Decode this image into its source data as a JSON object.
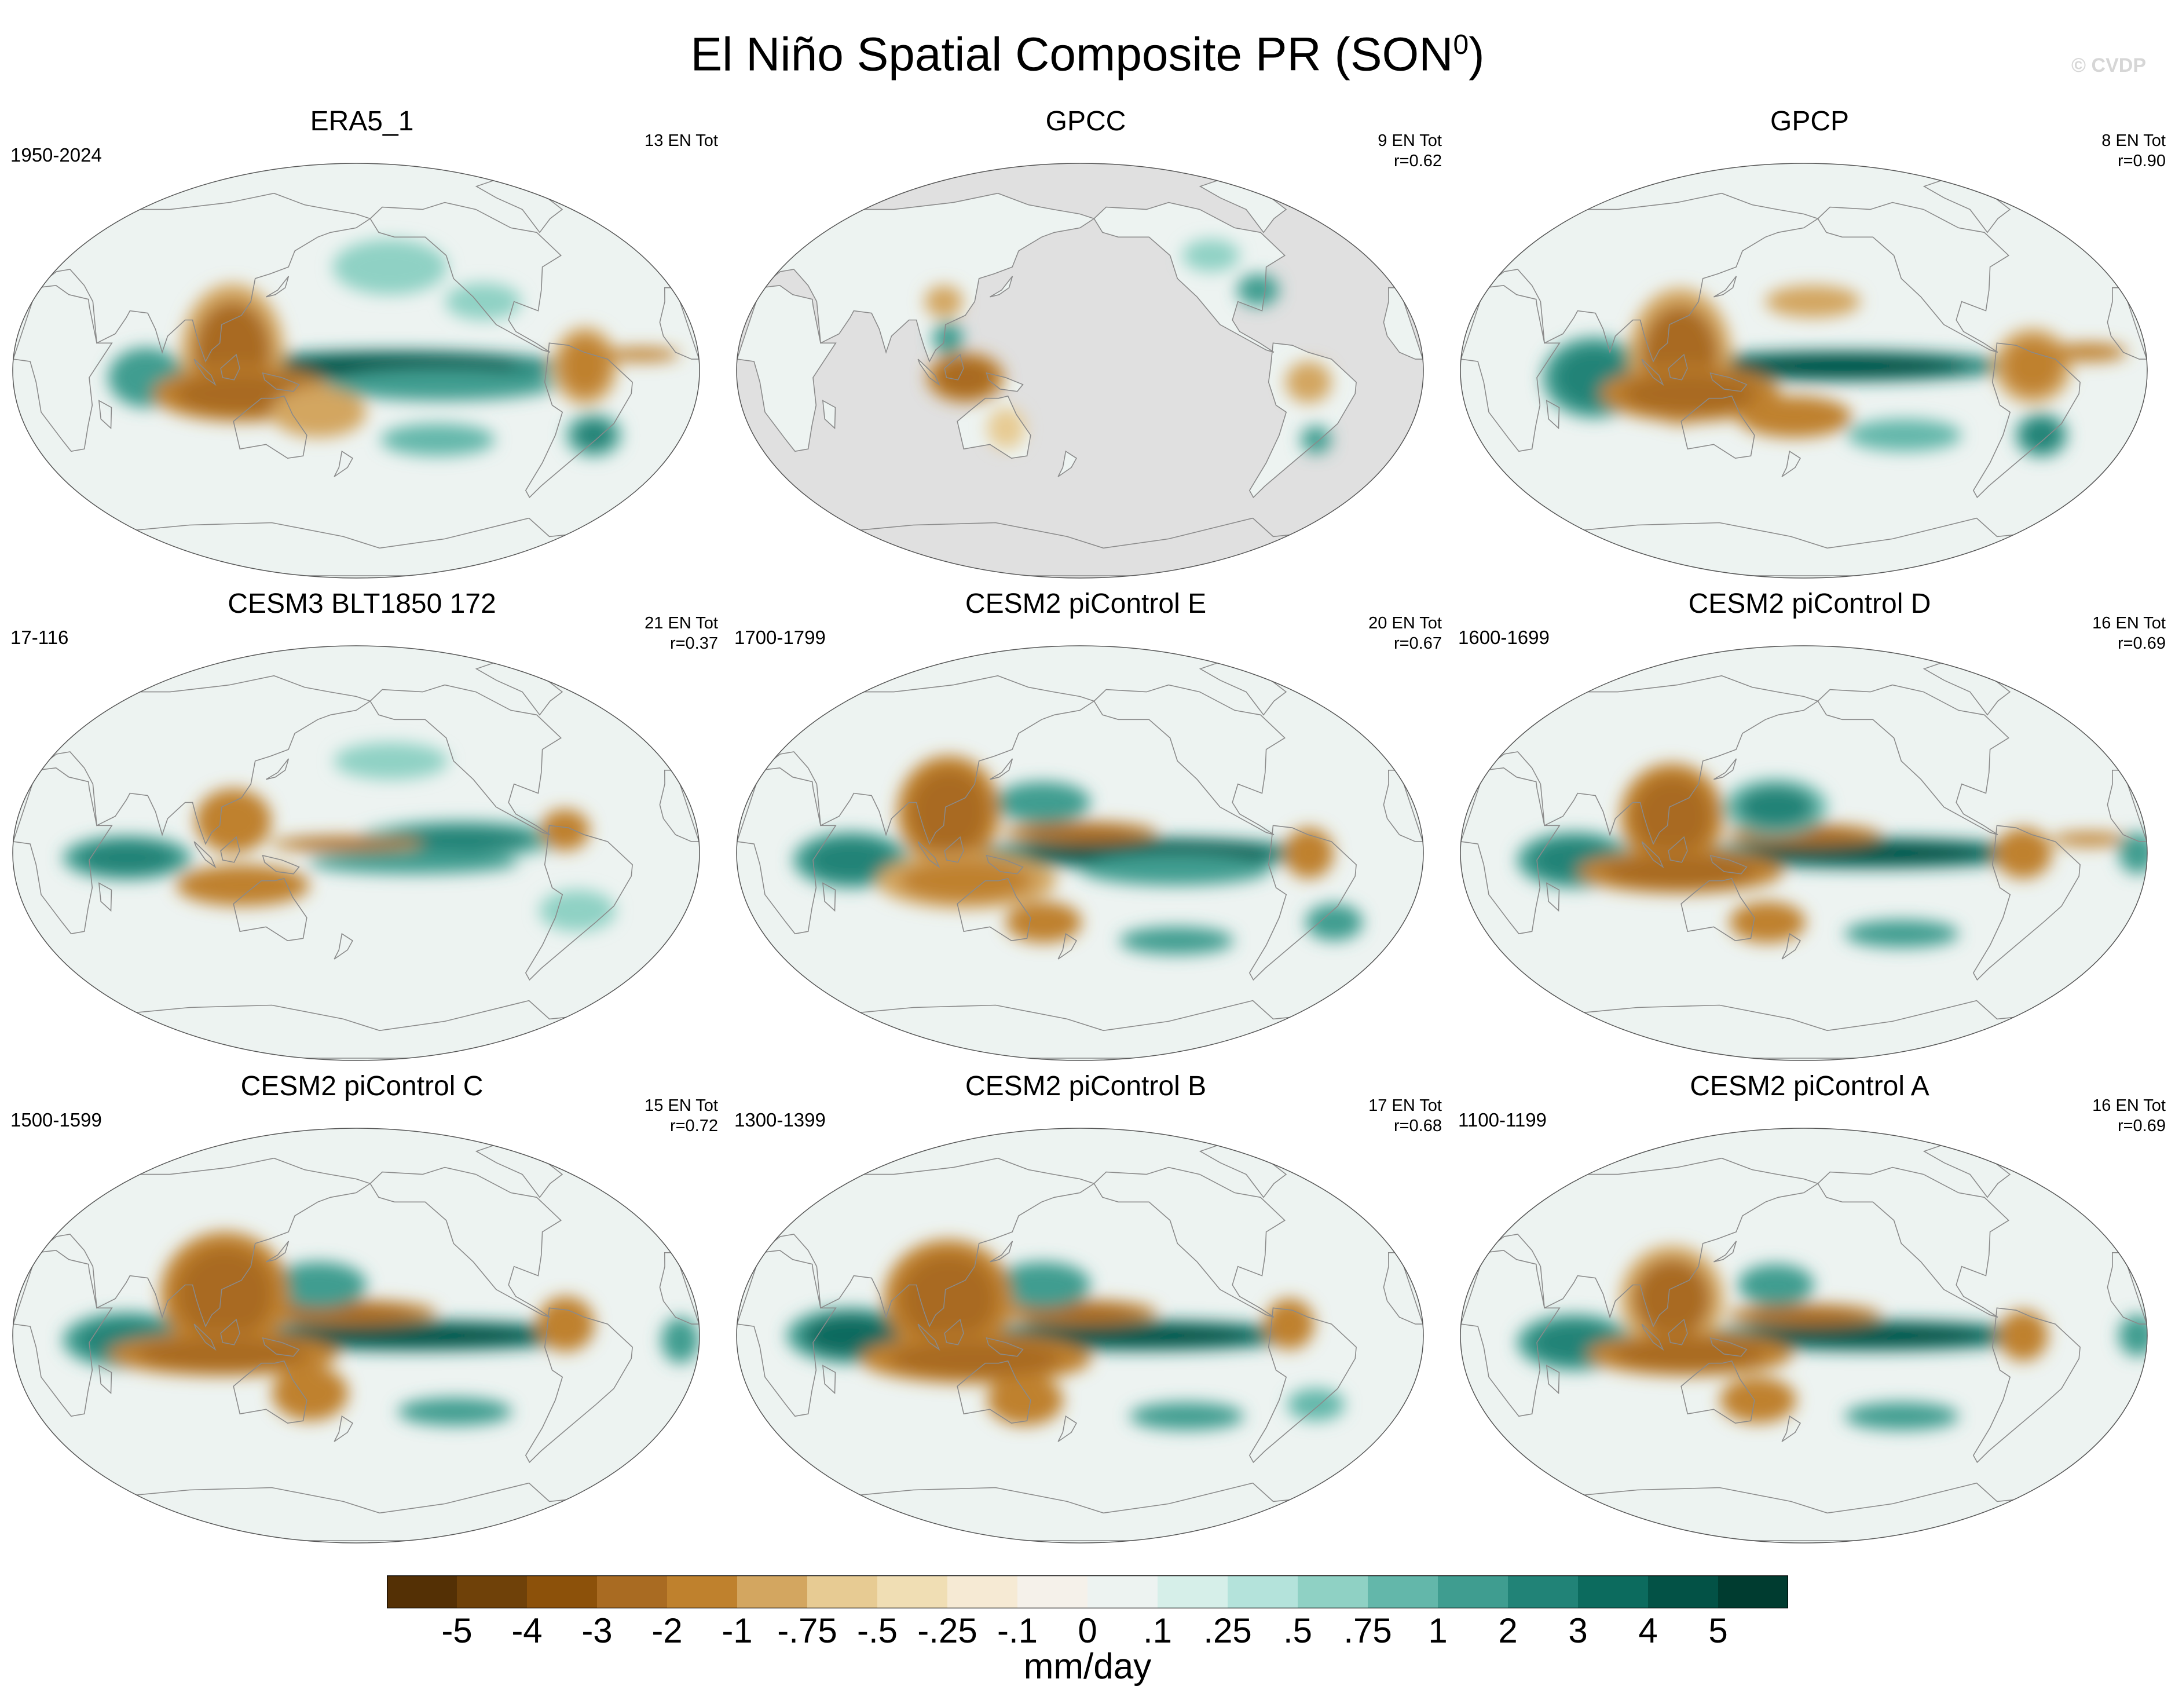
{
  "title": "El Niño Spatial Composite PR (SON",
  "title_sup": "0",
  "title_close": ")",
  "watermark": "© CVDP",
  "units": "mm/day",
  "chart_data": {
    "type": "heatmap",
    "projection": "Robinson (Pacific-centered global maps)",
    "layout": "3x3 grid of global map panels",
    "panels": [
      {
        "title": "ERA5_1",
        "years": "1950-2024",
        "en_count": "13 EN Tot",
        "r": "",
        "ocean_masked": false,
        "features": [
          {
            "lon": 200,
            "lat": 2,
            "w": 130,
            "h": 10,
            "v": 4.5
          },
          {
            "lon": 225,
            "lat": -6,
            "w": 120,
            "h": 14,
            "v": 1.2
          },
          {
            "lon": 70,
            "lat": -3,
            "w": 40,
            "h": 26,
            "v": 1.5
          },
          {
            "lon": 115,
            "lat": 8,
            "w": 40,
            "h": 44,
            "v": -2.2
          },
          {
            "lon": 120,
            "lat": -10,
            "w": 70,
            "h": 18,
            "v": -2.5
          },
          {
            "lon": 160,
            "lat": -18,
            "w": 50,
            "h": 22,
            "v": -1.0
          },
          {
            "lon": 300,
            "lat": 2,
            "w": 25,
            "h": 25,
            "v": -2.0
          },
          {
            "lon": 330,
            "lat": 7,
            "w": 40,
            "h": 6,
            "v": -1.2
          },
          {
            "lon": 310,
            "lat": -28,
            "w": 22,
            "h": 14,
            "v": 2.0
          },
          {
            "lon": 225,
            "lat": -30,
            "w": 60,
            "h": 14,
            "v": 0.9
          },
          {
            "lon": 200,
            "lat": 45,
            "w": 60,
            "h": 24,
            "v": 0.5
          },
          {
            "lon": 250,
            "lat": 30,
            "w": 40,
            "h": 16,
            "v": 0.7
          }
        ]
      },
      {
        "title": "GPCC",
        "years": "",
        "en_count": "9 EN Tot",
        "r": "r=0.62",
        "ocean_masked": true,
        "features": [
          {
            "lon": 120,
            "lat": -3,
            "w": 30,
            "h": 16,
            "v": -2.5
          },
          {
            "lon": 110,
            "lat": 14,
            "w": 16,
            "h": 14,
            "v": 1.8
          },
          {
            "lon": 105,
            "lat": 30,
            "w": 20,
            "h": 14,
            "v": -0.8
          },
          {
            "lon": 140,
            "lat": -25,
            "w": 20,
            "h": 18,
            "v": -0.6
          },
          {
            "lon": 280,
            "lat": 35,
            "w": 22,
            "h": 14,
            "v": 1.5
          },
          {
            "lon": 260,
            "lat": 50,
            "w": 30,
            "h": 14,
            "v": 0.6
          },
          {
            "lon": 300,
            "lat": -5,
            "w": 24,
            "h": 18,
            "v": -0.9
          },
          {
            "lon": 310,
            "lat": -30,
            "w": 16,
            "h": 12,
            "v": 1.4
          }
        ]
      },
      {
        "title": "GPCP",
        "years": "",
        "en_count": "8 EN Tot",
        "r": "r=0.90",
        "ocean_masked": false,
        "features": [
          {
            "lon": 200,
            "lat": 2,
            "w": 130,
            "h": 10,
            "v": 4.5
          },
          {
            "lon": 70,
            "lat": -3,
            "w": 40,
            "h": 26,
            "v": 2.5
          },
          {
            "lon": 115,
            "lat": 6,
            "w": 40,
            "h": 44,
            "v": -2.2
          },
          {
            "lon": 120,
            "lat": -10,
            "w": 70,
            "h": 18,
            "v": -3.0
          },
          {
            "lon": 175,
            "lat": -20,
            "w": 60,
            "h": 18,
            "v": -1.5
          },
          {
            "lon": 300,
            "lat": 2,
            "w": 30,
            "h": 24,
            "v": -2.0
          },
          {
            "lon": 310,
            "lat": -28,
            "w": 20,
            "h": 14,
            "v": 2.5
          },
          {
            "lon": 235,
            "lat": -28,
            "w": 60,
            "h": 14,
            "v": 0.9
          },
          {
            "lon": 185,
            "lat": 30,
            "w": 50,
            "h": 14,
            "v": -0.8
          },
          {
            "lon": 330,
            "lat": 8,
            "w": 40,
            "h": 8,
            "v": -1.2
          }
        ]
      },
      {
        "title": "CESM3 BLT1850 172",
        "years": "17-116",
        "en_count": "21 EN Tot",
        "r": "r=0.37",
        "ocean_masked": false,
        "features": [
          {
            "lon": 235,
            "lat": 6,
            "w": 80,
            "h": 12,
            "v": 2.0
          },
          {
            "lon": 175,
            "lat": 4,
            "w": 60,
            "h": 5,
            "v": -3.0
          },
          {
            "lon": 210,
            "lat": -4,
            "w": 110,
            "h": 10,
            "v": 1.5
          },
          {
            "lon": 60,
            "lat": -2,
            "w": 50,
            "h": 14,
            "v": 2.5
          },
          {
            "lon": 115,
            "lat": 14,
            "w": 40,
            "h": 28,
            "v": -1.5
          },
          {
            "lon": 120,
            "lat": -14,
            "w": 70,
            "h": 18,
            "v": -1.2
          },
          {
            "lon": 290,
            "lat": 10,
            "w": 26,
            "h": 18,
            "v": -1.5
          },
          {
            "lon": 300,
            "lat": -25,
            "w": 40,
            "h": 18,
            "v": 0.6
          },
          {
            "lon": 200,
            "lat": 40,
            "w": 60,
            "h": 16,
            "v": 0.5
          }
        ]
      },
      {
        "title": "CESM2 piControl E",
        "years": "1700-1799",
        "en_count": "20 EN Tot",
        "r": "r=0.67",
        "ocean_masked": false,
        "features": [
          {
            "lon": 215,
            "lat": 0,
            "w": 130,
            "h": 10,
            "v": 4.5
          },
          {
            "lon": 230,
            "lat": -7,
            "w": 100,
            "h": 14,
            "v": 1.0
          },
          {
            "lon": 180,
            "lat": 9,
            "w": 60,
            "h": 7,
            "v": -3.0
          },
          {
            "lon": 160,
            "lat": 22,
            "w": 50,
            "h": 18,
            "v": 1.5
          },
          {
            "lon": 60,
            "lat": -3,
            "w": 45,
            "h": 18,
            "v": 2.5
          },
          {
            "lon": 110,
            "lat": 18,
            "w": 40,
            "h": 36,
            "v": -2.5
          },
          {
            "lon": 120,
            "lat": -12,
            "w": 70,
            "h": 18,
            "v": -2.0
          },
          {
            "lon": 160,
            "lat": -30,
            "w": 40,
            "h": 18,
            "v": -1.5
          },
          {
            "lon": 300,
            "lat": 0,
            "w": 26,
            "h": 22,
            "v": -1.5
          },
          {
            "lon": 235,
            "lat": -38,
            "w": 60,
            "h": 12,
            "v": 1.5
          },
          {
            "lon": 320,
            "lat": -30,
            "w": 30,
            "h": 16,
            "v": 1.0
          }
        ]
      },
      {
        "title": "CESM2 piControl D",
        "years": "1600-1699",
        "en_count": "16 EN Tot",
        "r": "r=0.69",
        "ocean_masked": false,
        "features": [
          {
            "lon": 215,
            "lat": 0,
            "w": 130,
            "h": 10,
            "v": 4.5
          },
          {
            "lon": 180,
            "lat": 8,
            "w": 60,
            "h": 7,
            "v": -3.0
          },
          {
            "lon": 165,
            "lat": 20,
            "w": 40,
            "h": 18,
            "v": 2.0
          },
          {
            "lon": 60,
            "lat": -3,
            "w": 45,
            "h": 18,
            "v": 2.5
          },
          {
            "lon": 110,
            "lat": 16,
            "w": 40,
            "h": 34,
            "v": -2.5
          },
          {
            "lon": 115,
            "lat": -8,
            "w": 80,
            "h": 14,
            "v": -2.5
          },
          {
            "lon": 160,
            "lat": -30,
            "w": 40,
            "h": 18,
            "v": -1.2
          },
          {
            "lon": 295,
            "lat": 0,
            "w": 30,
            "h": 22,
            "v": -1.5
          },
          {
            "lon": 330,
            "lat": 6,
            "w": 40,
            "h": 6,
            "v": -1.2
          },
          {
            "lon": 235,
            "lat": -35,
            "w": 60,
            "h": 12,
            "v": 1.2
          },
          {
            "lon": 355,
            "lat": 0,
            "w": 20,
            "h": 18,
            "v": 1.0
          }
        ]
      },
      {
        "title": "CESM2 piControl C",
        "years": "1500-1599",
        "en_count": "15 EN Tot",
        "r": "r=0.72",
        "ocean_masked": false,
        "features": [
          {
            "lon": 210,
            "lat": 0,
            "w": 140,
            "h": 10,
            "v": 4.5
          },
          {
            "lon": 175,
            "lat": 10,
            "w": 70,
            "h": 8,
            "v": -3.0
          },
          {
            "lon": 160,
            "lat": 22,
            "w": 50,
            "h": 20,
            "v": 1.5
          },
          {
            "lon": 60,
            "lat": -2,
            "w": 50,
            "h": 18,
            "v": 2.5
          },
          {
            "lon": 110,
            "lat": 18,
            "w": 50,
            "h": 40,
            "v": -2.5
          },
          {
            "lon": 110,
            "lat": -8,
            "w": 90,
            "h": 14,
            "v": -3.0
          },
          {
            "lon": 155,
            "lat": -25,
            "w": 40,
            "h": 24,
            "v": -1.2
          },
          {
            "lon": 290,
            "lat": 5,
            "w": 30,
            "h": 24,
            "v": -1.2
          },
          {
            "lon": 235,
            "lat": -33,
            "w": 60,
            "h": 12,
            "v": 1.2
          },
          {
            "lon": 350,
            "lat": -2,
            "w": 20,
            "h": 20,
            "v": 1.0
          }
        ]
      },
      {
        "title": "CESM2 piControl B",
        "years": "1300-1399",
        "en_count": "17 EN Tot",
        "r": "r=0.68",
        "ocean_masked": false,
        "features": [
          {
            "lon": 210,
            "lat": 0,
            "w": 130,
            "h": 10,
            "v": 4.5
          },
          {
            "lon": 180,
            "lat": 10,
            "w": 60,
            "h": 8,
            "v": -3.0
          },
          {
            "lon": 160,
            "lat": 22,
            "w": 50,
            "h": 20,
            "v": 1.5
          },
          {
            "lon": 60,
            "lat": 0,
            "w": 50,
            "h": 18,
            "v": 3.0
          },
          {
            "lon": 110,
            "lat": 16,
            "w": 50,
            "h": 38,
            "v": -2.5
          },
          {
            "lon": 125,
            "lat": -10,
            "w": 90,
            "h": 16,
            "v": -3.0
          },
          {
            "lon": 150,
            "lat": -28,
            "w": 40,
            "h": 22,
            "v": -1.2
          },
          {
            "lon": 290,
            "lat": 5,
            "w": 26,
            "h": 22,
            "v": -1.5
          },
          {
            "lon": 240,
            "lat": -35,
            "w": 60,
            "h": 12,
            "v": 1.2
          },
          {
            "lon": 310,
            "lat": -30,
            "w": 30,
            "h": 14,
            "v": 0.9
          }
        ]
      },
      {
        "title": "CESM2 piControl A",
        "years": "1100-1199",
        "en_count": "16 EN Tot",
        "r": "r=0.69",
        "ocean_masked": false,
        "features": [
          {
            "lon": 215,
            "lat": 0,
            "w": 130,
            "h": 10,
            "v": 4.5
          },
          {
            "lon": 180,
            "lat": 9,
            "w": 60,
            "h": 7,
            "v": -3.0
          },
          {
            "lon": 165,
            "lat": 22,
            "w": 40,
            "h": 18,
            "v": 1.5
          },
          {
            "lon": 60,
            "lat": -3,
            "w": 45,
            "h": 18,
            "v": 2.5
          },
          {
            "lon": 110,
            "lat": 16,
            "w": 40,
            "h": 34,
            "v": -2.2
          },
          {
            "lon": 120,
            "lat": -8,
            "w": 80,
            "h": 14,
            "v": -2.5
          },
          {
            "lon": 155,
            "lat": -28,
            "w": 40,
            "h": 20,
            "v": -1.2
          },
          {
            "lon": 295,
            "lat": 0,
            "w": 26,
            "h": 22,
            "v": -1.5
          },
          {
            "lon": 235,
            "lat": -35,
            "w": 60,
            "h": 12,
            "v": 1.2
          },
          {
            "lon": 355,
            "lat": 0,
            "w": 20,
            "h": 18,
            "v": 1.0
          }
        ]
      }
    ],
    "colorbar": {
      "levels": [
        -5,
        -4,
        -3,
        -2,
        -1,
        -0.75,
        -0.5,
        -0.25,
        -0.1,
        0,
        0.1,
        0.25,
        0.5,
        0.75,
        1,
        2,
        3,
        4,
        5
      ],
      "tick_labels": [
        "-5",
        "-4",
        "-3",
        "-2",
        "-1",
        "-.75",
        "-.5",
        "-.25",
        "-.1",
        "0",
        ".1",
        ".25",
        ".5",
        ".75",
        "1",
        "2",
        "3",
        "4",
        "5"
      ],
      "colors": [
        "#543005",
        "#6f4109",
        "#8c510a",
        "#a96b22",
        "#bf812d",
        "#d3a660",
        "#e7cb93",
        "#f0deb4",
        "#f6ead4",
        "#f5f1ea",
        "#edf3f1",
        "#d6efe9",
        "#b4e3db",
        "#8fd1c4",
        "#63b7aa",
        "#3f9d90",
        "#218377",
        "#0c6b5e",
        "#035246",
        "#003c30"
      ],
      "label": "mm/day"
    },
    "mask_color": "#e0e0e0",
    "coastline_color": "#8a8a8a"
  }
}
